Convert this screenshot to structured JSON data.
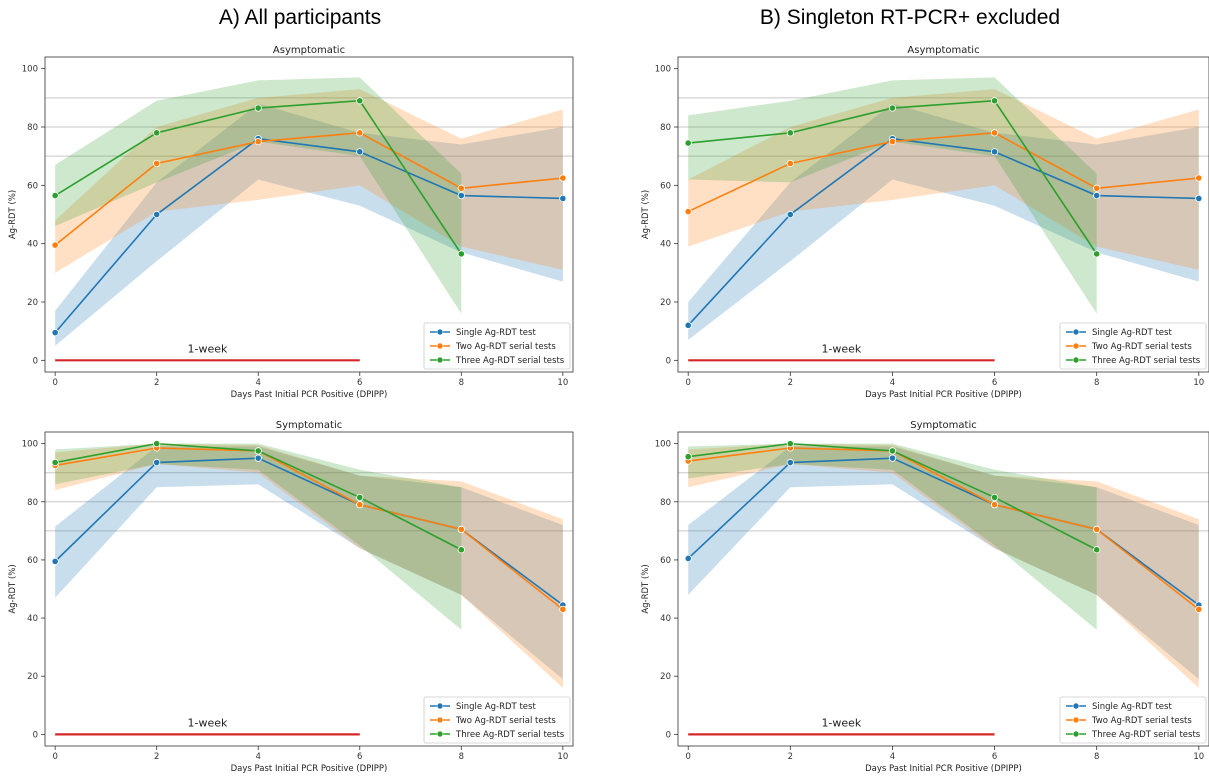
{
  "column_titles": [
    "A) All participants",
    "B) Singleton RT-PCR+ excluded"
  ],
  "colors": {
    "single": "#1f77b4",
    "two": "#ff7f0e",
    "three": "#2ca02c",
    "week_line": "#d62728",
    "ref_line": "#c8c8c8"
  },
  "chart_data": [
    {
      "type": "line",
      "column": "A) All participants",
      "title": "Asymptomatic",
      "xlabel": "Days Past Initial PCR Positive (DPIPP)",
      "ylabel": "Ag-RDT (%)",
      "xlim": [
        -0.2,
        10.2
      ],
      "ylim": [
        -4,
        104
      ],
      "xticks": [
        0,
        2,
        4,
        6,
        8,
        10
      ],
      "yticks": [
        0,
        20,
        40,
        60,
        80,
        100
      ],
      "reference_lines": [
        70,
        80,
        90
      ],
      "annotation": {
        "text": "1-week",
        "line_from": 0,
        "line_to": 6,
        "y": 0
      },
      "legend_position": "lower right",
      "series": [
        {
          "name": "Single Ag-RDT test",
          "color": "#1f77b4",
          "x": [
            0,
            2,
            4,
            6,
            8,
            10
          ],
          "y": [
            9.5,
            50,
            76,
            71.5,
            56.5,
            55.5
          ],
          "lower": [
            5,
            34,
            62,
            53,
            37,
            27
          ],
          "upper": [
            17,
            61,
            88,
            78,
            74,
            80
          ]
        },
        {
          "name": "Two Ag-RDT serial tests",
          "color": "#ff7f0e",
          "x": [
            0,
            2,
            4,
            6,
            8,
            10
          ],
          "y": [
            39.5,
            67.5,
            75,
            78,
            59,
            62.5
          ],
          "lower": [
            30,
            51,
            55,
            60,
            39,
            31
          ],
          "upper": [
            48,
            80,
            90,
            93,
            76,
            86
          ]
        },
        {
          "name": "Three Ag-RDT serial tests",
          "color": "#2ca02c",
          "x": [
            0,
            2,
            4,
            6,
            8
          ],
          "y": [
            56.5,
            78,
            86.5,
            89,
            36.5
          ],
          "lower": [
            46,
            61,
            75,
            70,
            16
          ],
          "upper": [
            67,
            89,
            96,
            97,
            64
          ]
        }
      ]
    },
    {
      "type": "line",
      "column": "B) Singleton RT-PCR+ excluded",
      "title": "Asymptomatic",
      "xlabel": "Days Past Initial PCR Positive (DPIPP)",
      "ylabel": "Ag-RDT (%)",
      "xlim": [
        -0.2,
        10.2
      ],
      "ylim": [
        -4,
        104
      ],
      "xticks": [
        0,
        2,
        4,
        6,
        8,
        10
      ],
      "yticks": [
        0,
        20,
        40,
        60,
        80,
        100
      ],
      "reference_lines": [
        70,
        80,
        90
      ],
      "annotation": {
        "text": "1-week",
        "line_from": 0,
        "line_to": 6,
        "y": 0
      },
      "legend_position": "lower right",
      "series": [
        {
          "name": "Single Ag-RDT test",
          "color": "#1f77b4",
          "x": [
            0,
            2,
            4,
            6,
            8,
            10
          ],
          "y": [
            12,
            50,
            76,
            71.5,
            56.5,
            55.5
          ],
          "lower": [
            7,
            34,
            62,
            53,
            37,
            27
          ],
          "upper": [
            20,
            61,
            88,
            78,
            74,
            80
          ]
        },
        {
          "name": "Two Ag-RDT serial tests",
          "color": "#ff7f0e",
          "x": [
            0,
            2,
            4,
            6,
            8,
            10
          ],
          "y": [
            51,
            67.5,
            75,
            78,
            59,
            62.5
          ],
          "lower": [
            39,
            51,
            55,
            60,
            39,
            31
          ],
          "upper": [
            62,
            80,
            90,
            93,
            76,
            86
          ]
        },
        {
          "name": "Three Ag-RDT serial tests",
          "color": "#2ca02c",
          "x": [
            0,
            2,
            4,
            6,
            8
          ],
          "y": [
            74.5,
            78,
            86.5,
            89,
            36.5
          ],
          "lower": [
            62,
            61,
            75,
            70,
            16
          ],
          "upper": [
            84,
            89,
            96,
            97,
            64
          ]
        }
      ]
    },
    {
      "type": "line",
      "column": "A) All participants",
      "title": "Symptomatic",
      "xlabel": "Days Past Initial PCR Positive (DPIPP)",
      "ylabel": "Ag-RDT (%)",
      "xlim": [
        -0.2,
        10.2
      ],
      "ylim": [
        -4,
        104
      ],
      "xticks": [
        0,
        2,
        4,
        6,
        8,
        10
      ],
      "yticks": [
        0,
        20,
        40,
        60,
        80,
        100
      ],
      "reference_lines": [
        70,
        80,
        90
      ],
      "annotation": {
        "text": "1-week",
        "line_from": 0,
        "line_to": 6,
        "y": 0
      },
      "legend_position": "lower right",
      "series": [
        {
          "name": "Single Ag-RDT test",
          "color": "#1f77b4",
          "x": [
            0,
            2,
            4,
            6,
            8,
            10
          ],
          "y": [
            59.5,
            93.5,
            95,
            79,
            70.5,
            44.5
          ],
          "lower": [
            47,
            85,
            86,
            64,
            48,
            19
          ],
          "upper": [
            71.5,
            99,
            99,
            89,
            85,
            72
          ]
        },
        {
          "name": "Two Ag-RDT serial tests",
          "color": "#ff7f0e",
          "x": [
            0,
            2,
            4,
            6,
            8,
            10
          ],
          "y": [
            92.5,
            98.5,
            97.5,
            79,
            70.5,
            43
          ],
          "lower": [
            84,
            93,
            90,
            64,
            48,
            16
          ],
          "upper": [
            97,
            100,
            99.5,
            89,
            87,
            74
          ]
        },
        {
          "name": "Three Ag-RDT serial tests",
          "color": "#2ca02c",
          "x": [
            0,
            2,
            4,
            6,
            8
          ],
          "y": [
            93.5,
            100,
            97.5,
            81.5,
            63.5
          ],
          "lower": [
            86,
            93,
            91,
            65,
            36
          ],
          "upper": [
            98,
            100,
            100,
            91,
            85
          ]
        }
      ]
    },
    {
      "type": "line",
      "column": "B) Singleton RT-PCR+ excluded",
      "title": "Symptomatic",
      "xlabel": "Days Past Initial PCR Positive (DPIPP)",
      "ylabel": "Ag-RDT (%)",
      "xlim": [
        -0.2,
        10.2
      ],
      "ylim": [
        -4,
        104
      ],
      "xticks": [
        0,
        2,
        4,
        6,
        8,
        10
      ],
      "yticks": [
        0,
        20,
        40,
        60,
        80,
        100
      ],
      "reference_lines": [
        70,
        80,
        90
      ],
      "annotation": {
        "text": "1-week",
        "line_from": 0,
        "line_to": 6,
        "y": 0
      },
      "legend_position": "lower right",
      "series": [
        {
          "name": "Single Ag-RDT test",
          "color": "#1f77b4",
          "x": [
            0,
            2,
            4,
            6,
            8,
            10
          ],
          "y": [
            60.5,
            93.5,
            95,
            79,
            70.5,
            44.5
          ],
          "lower": [
            48,
            85,
            86,
            64,
            48,
            19
          ],
          "upper": [
            72,
            99,
            99,
            89,
            85,
            72
          ]
        },
        {
          "name": "Two Ag-RDT serial tests",
          "color": "#ff7f0e",
          "x": [
            0,
            2,
            4,
            6,
            8,
            10
          ],
          "y": [
            94,
            98.5,
            97.5,
            79,
            70.5,
            43
          ],
          "lower": [
            85,
            93,
            90,
            64,
            48,
            16
          ],
          "upper": [
            98,
            100,
            99.5,
            89,
            87,
            74
          ]
        },
        {
          "name": "Three Ag-RDT serial tests",
          "color": "#2ca02c",
          "x": [
            0,
            2,
            4,
            6,
            8
          ],
          "y": [
            95.5,
            100,
            97.5,
            81.5,
            63.5
          ],
          "lower": [
            88,
            93,
            91,
            65,
            36
          ],
          "upper": [
            99,
            100,
            100,
            91,
            85
          ]
        }
      ]
    }
  ]
}
